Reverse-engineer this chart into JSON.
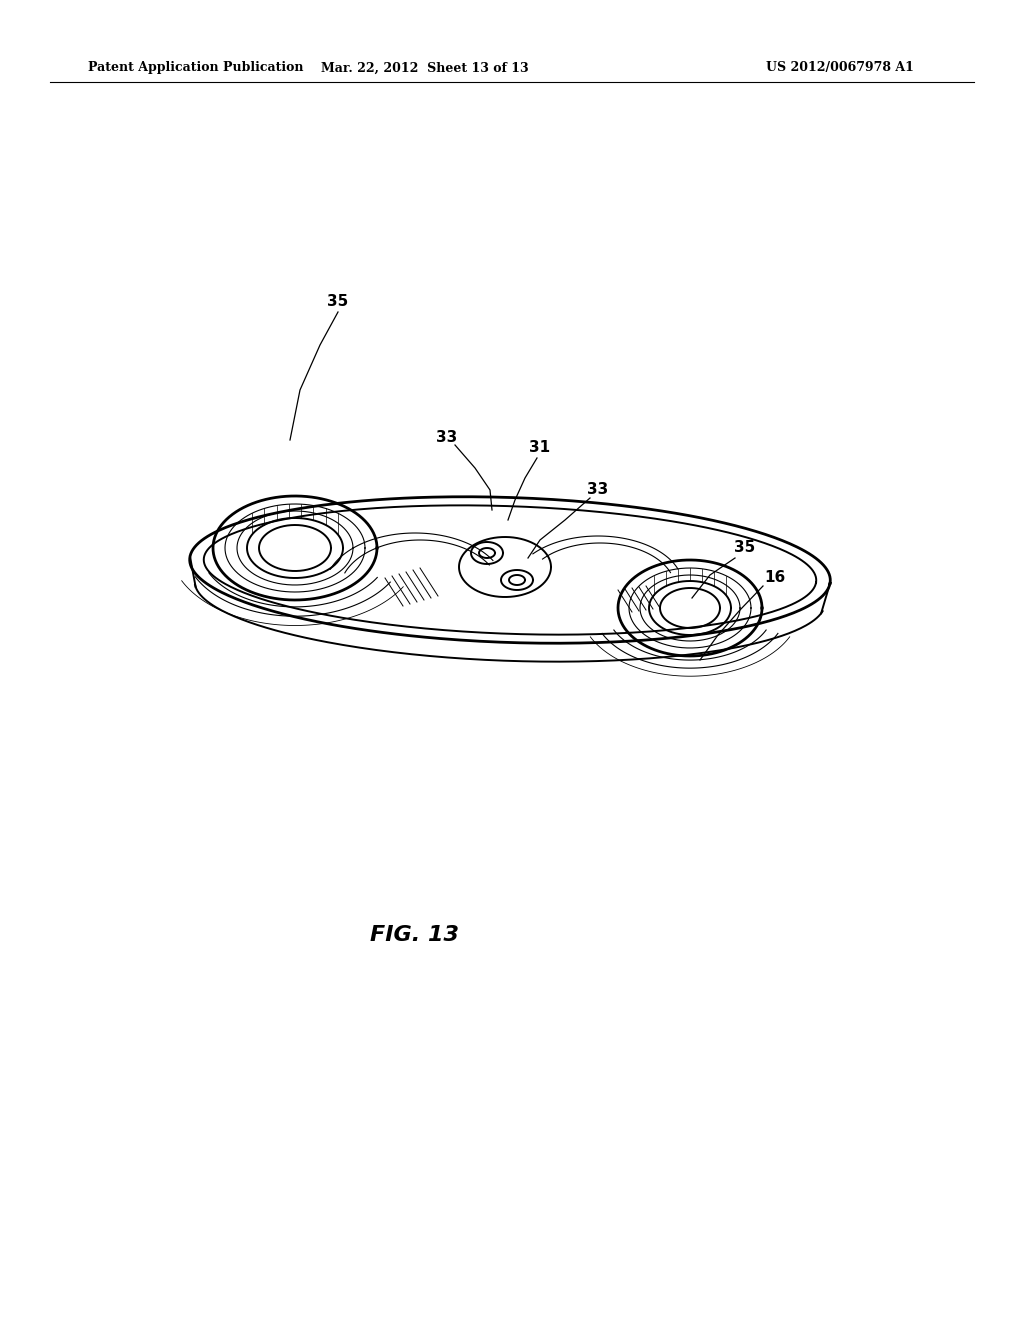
{
  "header_left": "Patent Application Publication",
  "header_mid": "Mar. 22, 2012  Sheet 13 of 13",
  "header_right": "US 2012/0067978 A1",
  "fig_label": "FIG. 13",
  "bg_color": "#ffffff",
  "line_color": "#000000",
  "header_fontsize": 9,
  "fig_label_fontsize": 16
}
